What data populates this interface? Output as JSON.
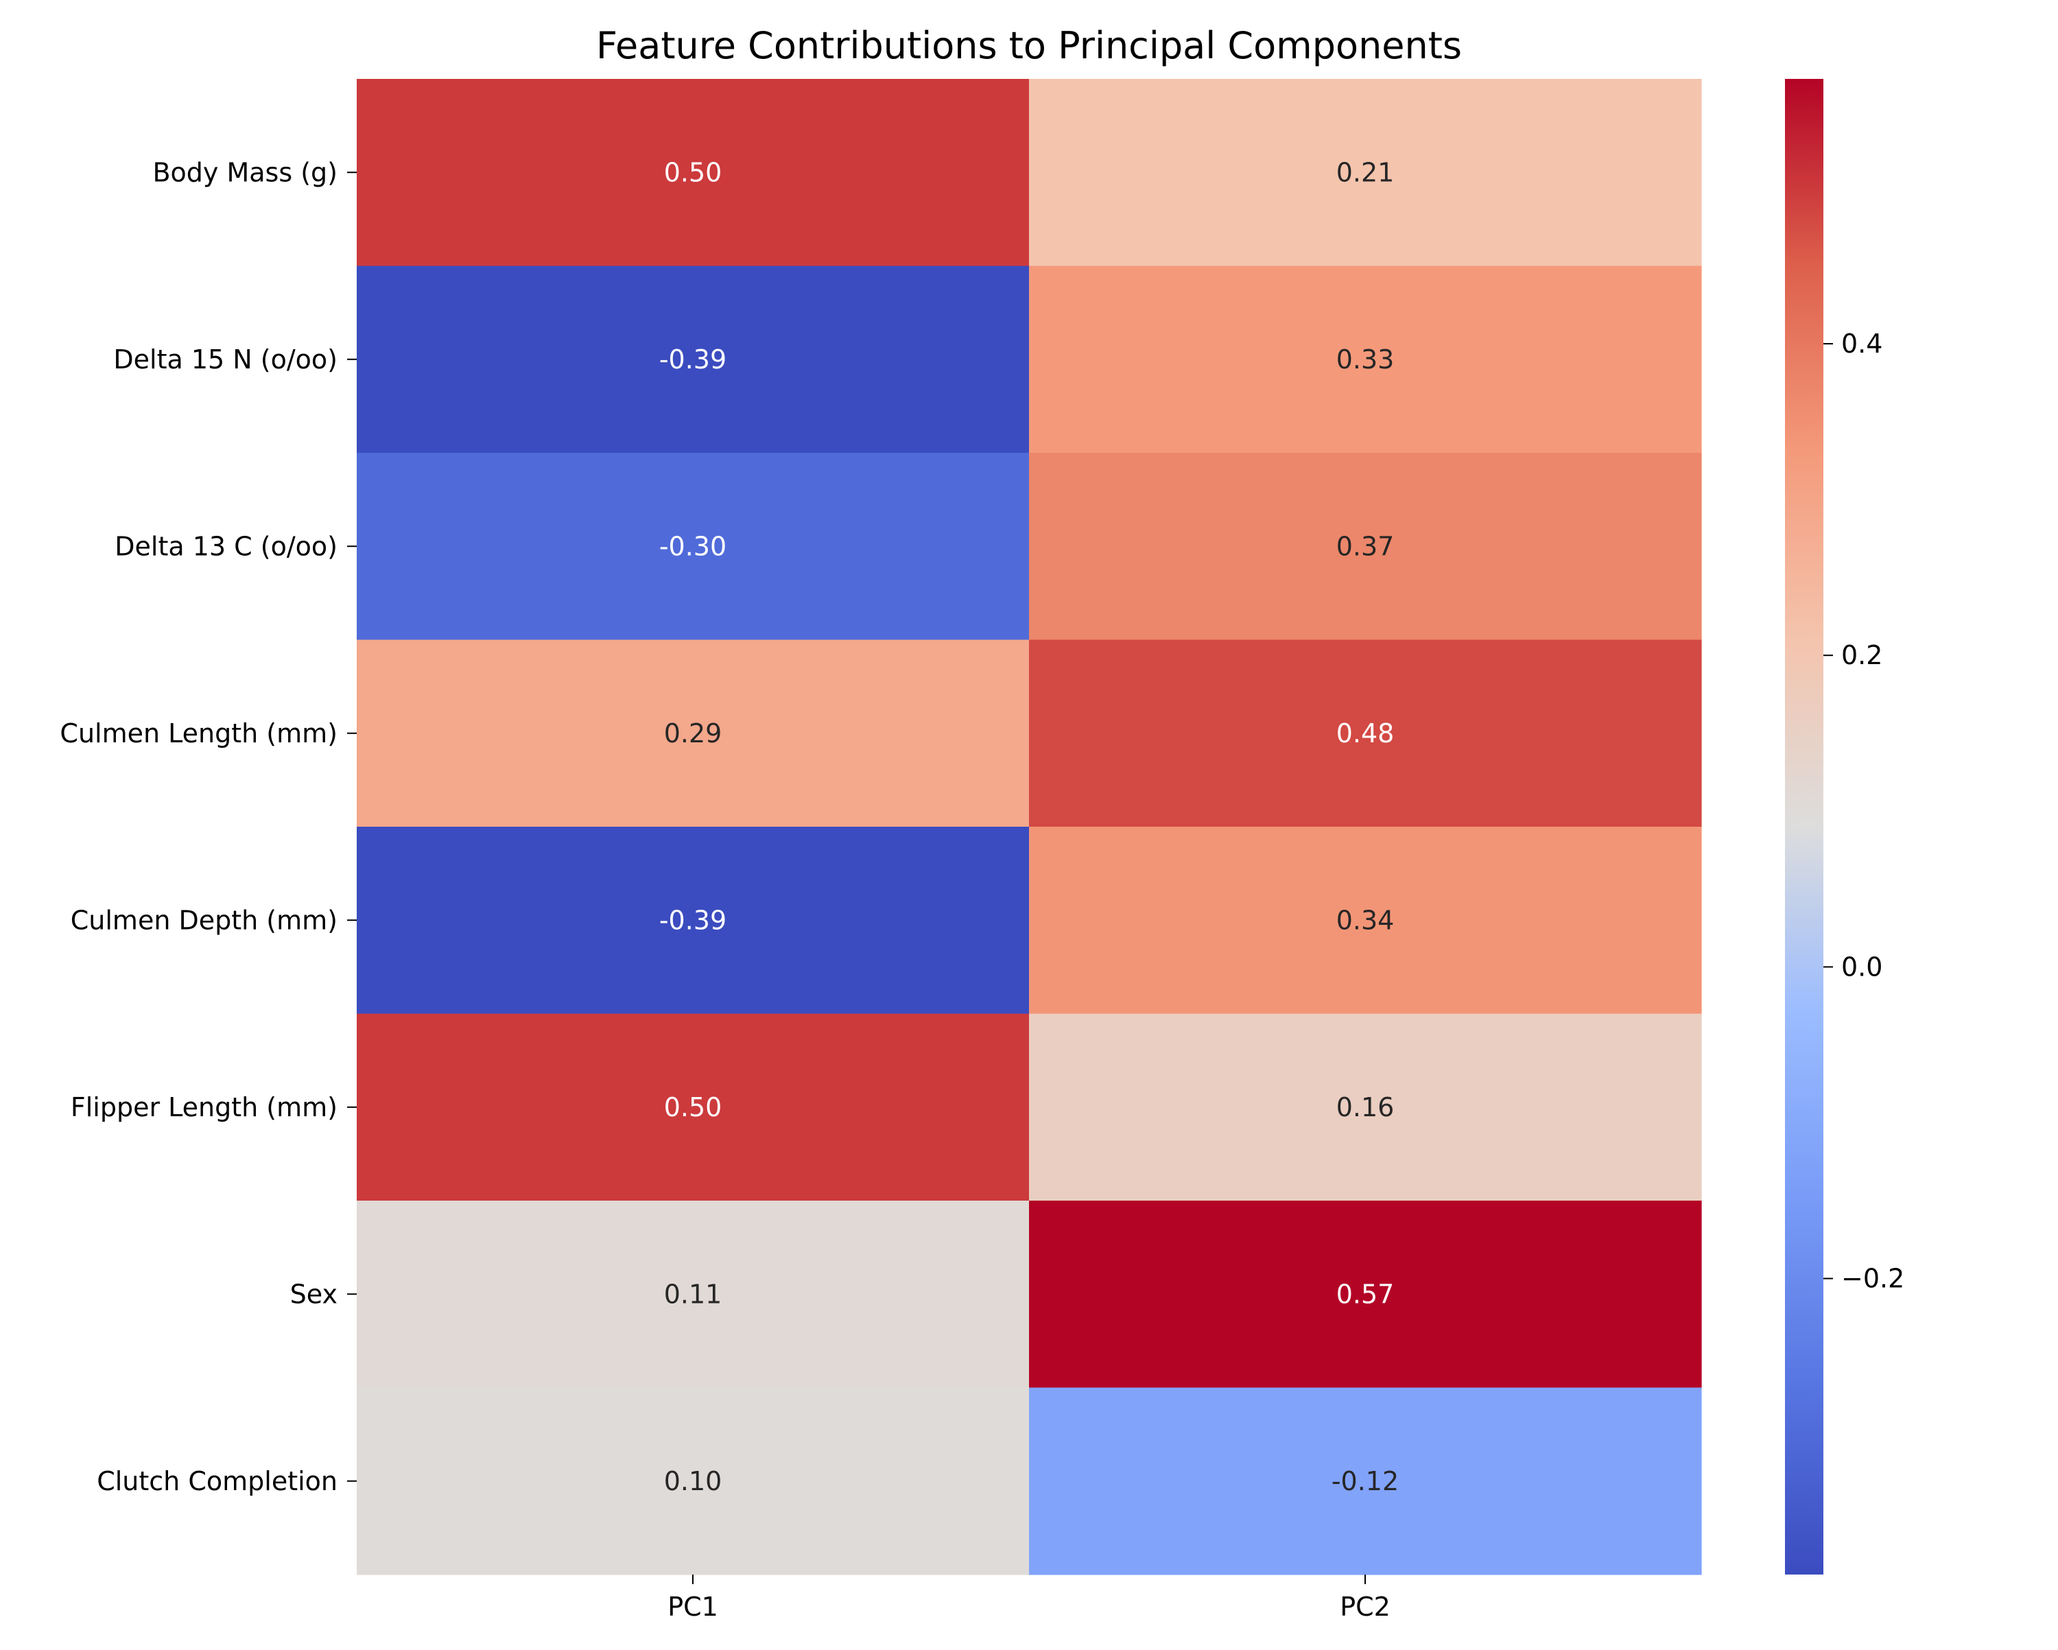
{
  "chart_data": {
    "type": "heatmap",
    "title": "Feature Contributions to Principal Components",
    "columns": [
      "PC1",
      "PC2"
    ],
    "rows": [
      "Body Mass (g)",
      "Delta 15 N (o/oo)",
      "Delta 13 C (o/oo)",
      "Culmen Length (mm)",
      "Culmen Depth (mm)",
      "Flipper Length (mm)",
      "Sex",
      "Clutch Completion"
    ],
    "values": [
      [
        0.5,
        0.21
      ],
      [
        -0.39,
        0.33
      ],
      [
        -0.3,
        0.37
      ],
      [
        0.29,
        0.48
      ],
      [
        -0.39,
        0.34
      ],
      [
        0.5,
        0.16
      ],
      [
        0.11,
        0.57
      ],
      [
        0.1,
        -0.12
      ]
    ],
    "cell_labels": [
      [
        "0.50",
        "0.21"
      ],
      [
        "-0.39",
        "0.33"
      ],
      [
        "-0.30",
        "0.37"
      ],
      [
        "0.29",
        "0.48"
      ],
      [
        "-0.39",
        "0.34"
      ],
      [
        "0.50",
        "0.16"
      ],
      [
        "0.11",
        "0.57"
      ],
      [
        "0.10",
        "-0.12"
      ]
    ],
    "colormap": "coolwarm",
    "color_range": [
      -0.39,
      0.57
    ],
    "colorbar": {
      "ticks": [
        -0.2,
        0.0,
        0.2,
        0.4
      ],
      "tick_labels": [
        "−0.2",
        "0.0",
        "0.2",
        "0.4"
      ]
    },
    "grid": false
  }
}
